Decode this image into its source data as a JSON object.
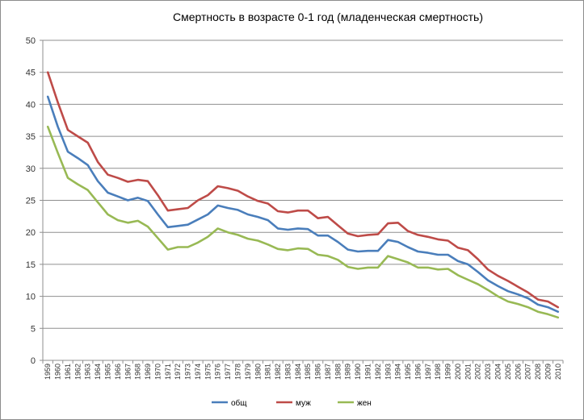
{
  "chart_data": {
    "type": "line",
    "title": "Смертность в возрасте 0-1 год (младенческая смертность)",
    "xlabel": "",
    "ylabel": "",
    "ylim": [
      0,
      50
    ],
    "yticks": [
      "0",
      "5",
      "10",
      "15",
      "20",
      "25",
      "30",
      "35",
      "40",
      "45",
      "50"
    ],
    "grid": true,
    "legend_position": "bottom",
    "categories": [
      "1959",
      "1960",
      "1961",
      "1962",
      "1963",
      "1964",
      "1965",
      "1966",
      "1967",
      "1968",
      "1969",
      "1970",
      "1971",
      "1972",
      "1973",
      "1974",
      "1975",
      "1976",
      "1977",
      "1978",
      "1979",
      "1980",
      "1981",
      "1982",
      "1983",
      "1984",
      "1985",
      "1986",
      "1987",
      "1988",
      "1989",
      "1990",
      "1991",
      "1992",
      "1993",
      "1994",
      "1995",
      "1996",
      "1997",
      "1998",
      "1999",
      "2000",
      "2001",
      "2002",
      "2003",
      "2004",
      "2005",
      "2006",
      "2007",
      "2008",
      "2009",
      "2010"
    ],
    "series": [
      {
        "name": "общ",
        "color": "#4a7ebb",
        "values": [
          41.2,
          36.5,
          32.6,
          31.6,
          30.5,
          28.0,
          26.2,
          25.6,
          25.0,
          25.4,
          24.9,
          22.8,
          20.8,
          21.0,
          21.2,
          22.0,
          22.8,
          24.2,
          23.8,
          23.5,
          22.8,
          22.4,
          21.9,
          20.6,
          20.4,
          20.6,
          20.5,
          19.5,
          19.5,
          18.5,
          17.3,
          17.0,
          17.1,
          17.1,
          18.8,
          18.5,
          17.7,
          17.0,
          16.8,
          16.5,
          16.5,
          15.5,
          15.0,
          13.8,
          12.5,
          11.6,
          10.8,
          10.3,
          9.7,
          8.7,
          8.3,
          7.6
        ]
      },
      {
        "name": "муж",
        "color": "#be4b48",
        "values": [
          45.0,
          40.3,
          36.0,
          35.0,
          34.0,
          31.0,
          29.0,
          28.5,
          27.9,
          28.2,
          28.0,
          25.8,
          23.4,
          23.6,
          23.8,
          25.0,
          25.8,
          27.2,
          26.9,
          26.5,
          25.6,
          24.9,
          24.5,
          23.3,
          23.1,
          23.4,
          23.4,
          22.2,
          22.4,
          21.1,
          19.8,
          19.4,
          19.6,
          19.7,
          21.4,
          21.5,
          20.2,
          19.6,
          19.3,
          18.9,
          18.7,
          17.6,
          17.2,
          15.8,
          14.2,
          13.2,
          12.4,
          11.5,
          10.6,
          9.5,
          9.2,
          8.3
        ]
      },
      {
        "name": "жен",
        "color": "#98b954",
        "values": [
          36.5,
          32.4,
          28.5,
          27.5,
          26.6,
          24.7,
          22.8,
          21.9,
          21.5,
          21.8,
          20.9,
          19.1,
          17.3,
          17.7,
          17.7,
          18.4,
          19.3,
          20.6,
          20.0,
          19.6,
          19.0,
          18.7,
          18.1,
          17.4,
          17.2,
          17.5,
          17.4,
          16.5,
          16.3,
          15.7,
          14.6,
          14.3,
          14.5,
          14.5,
          16.3,
          15.8,
          15.3,
          14.5,
          14.5,
          14.2,
          14.3,
          13.3,
          12.6,
          11.9,
          11.0,
          10.0,
          9.2,
          8.8,
          8.3,
          7.6,
          7.2,
          6.7
        ]
      }
    ]
  }
}
